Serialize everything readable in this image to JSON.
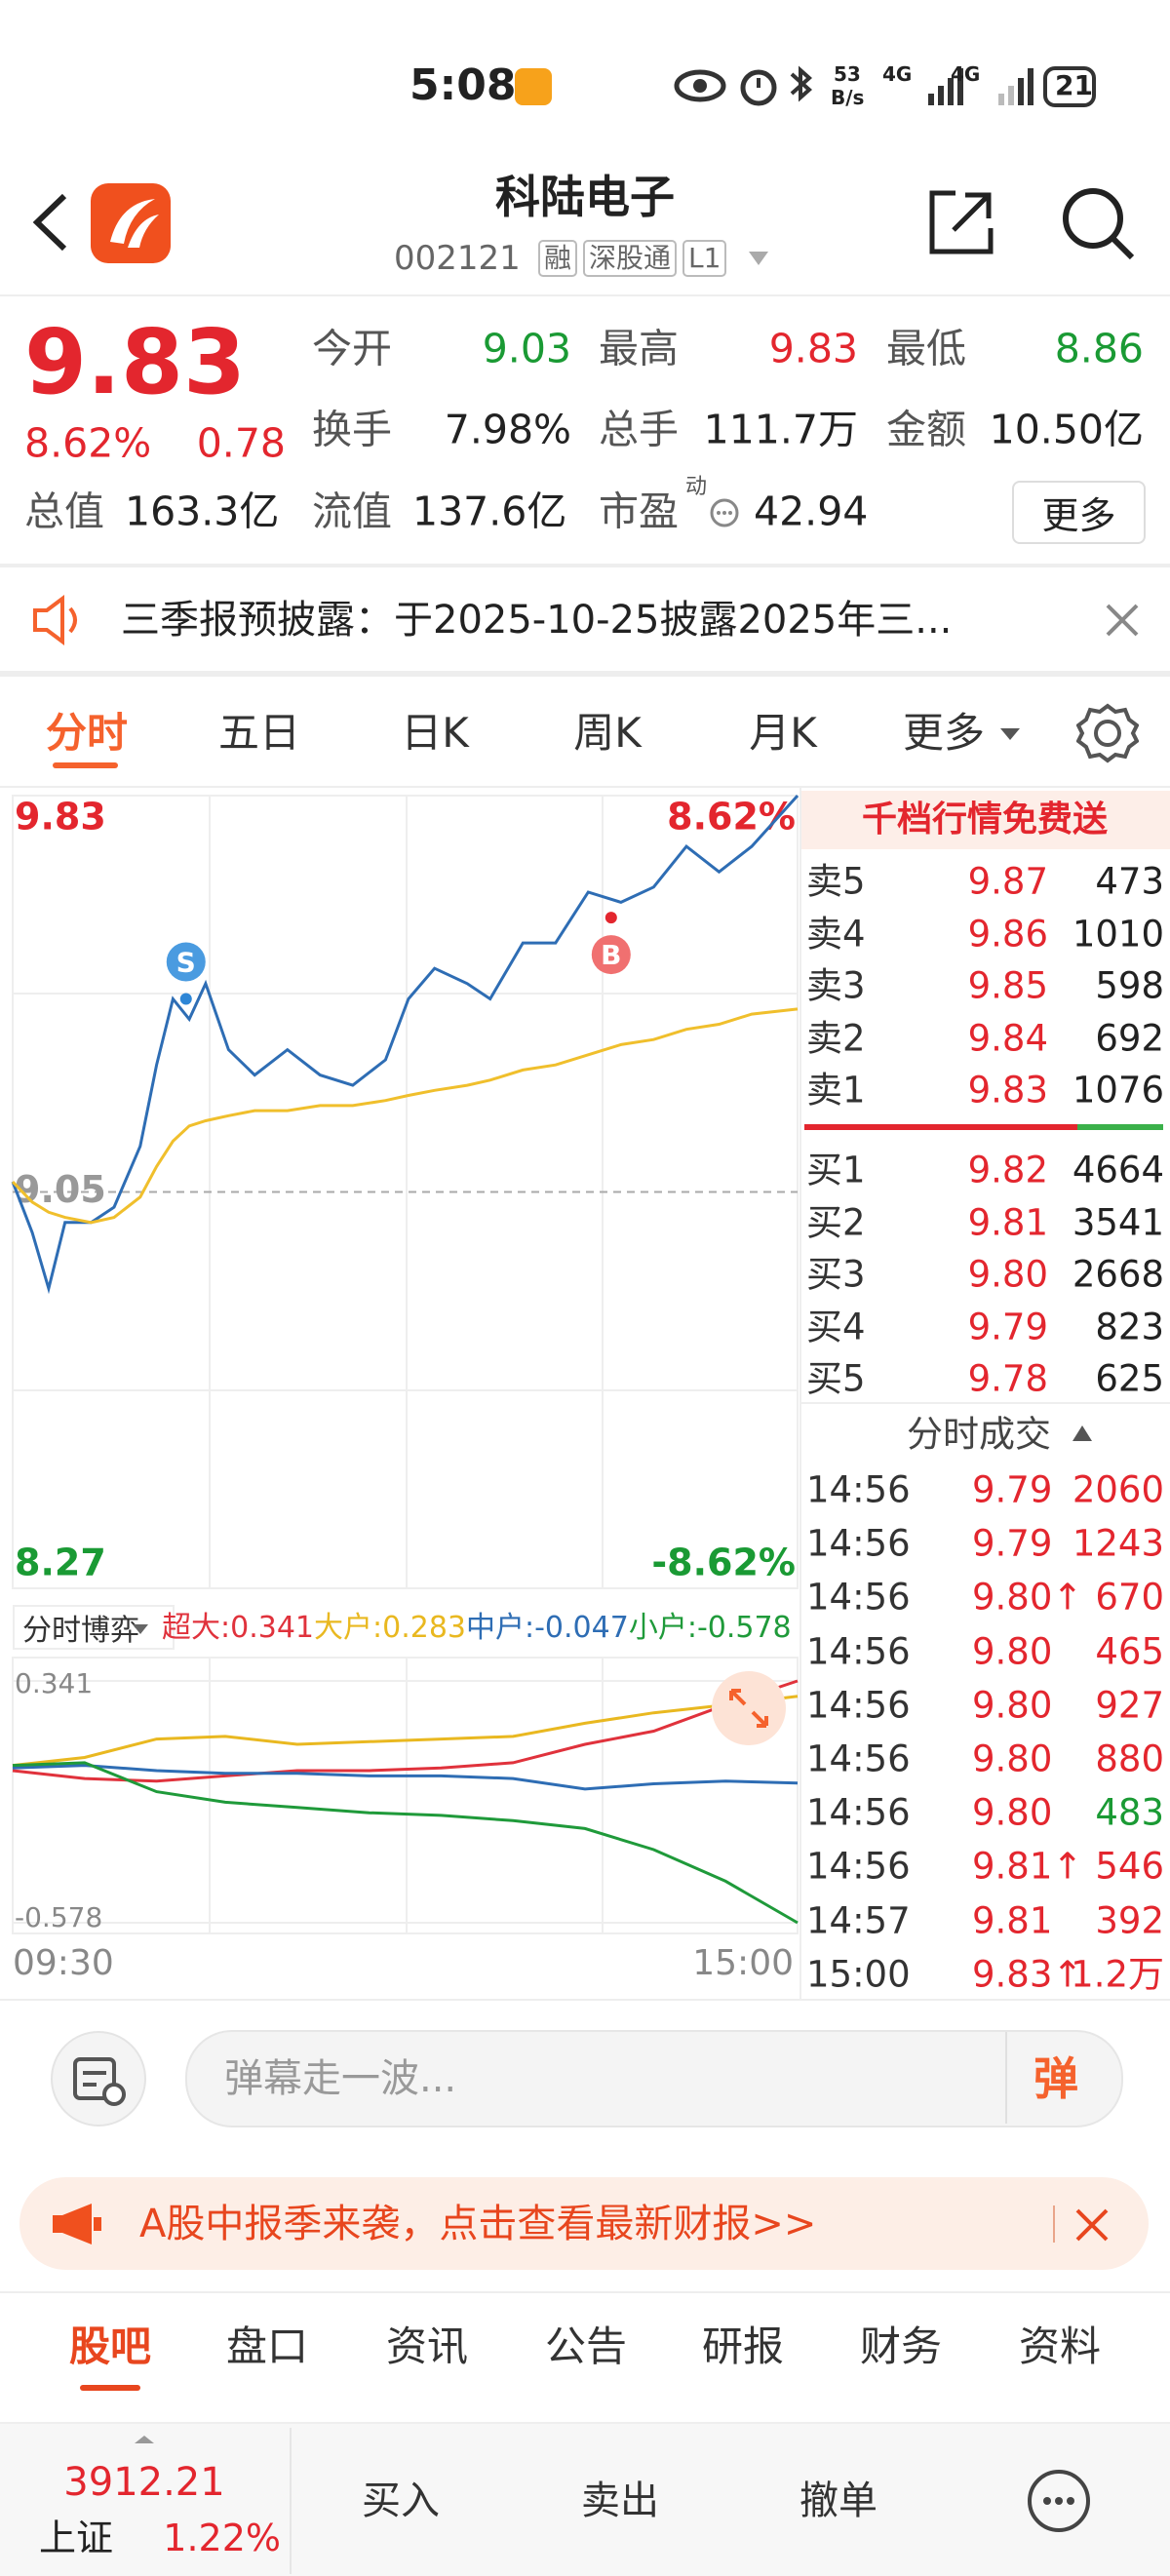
{
  "status_bar": {
    "time": "5:08",
    "speed": "53",
    "speed_unit": "B/s",
    "net1": "4G",
    "net2": "4G",
    "battery": "21"
  },
  "header": {
    "title": "科陆电子",
    "code": "002121",
    "badges": [
      "融",
      "深股通",
      "L1"
    ]
  },
  "quote": {
    "price": "9.83",
    "change_pct": "8.62%",
    "change": "0.78",
    "open": {
      "label": "今开",
      "value": "9.03"
    },
    "high": {
      "label": "最高",
      "value": "9.83"
    },
    "low": {
      "label": "最低",
      "value": "8.86"
    },
    "turnover": {
      "label": "换手",
      "value": "7.98%"
    },
    "volume": {
      "label": "总手",
      "value": "111.7万"
    },
    "amount": {
      "label": "金额",
      "value": "10.50亿"
    },
    "market_cap": {
      "label": "总值",
      "value": "163.3亿"
    },
    "float_cap": {
      "label": "流值",
      "value": "137.6亿"
    },
    "pe": {
      "label": "市盈",
      "tag": "动",
      "value": "42.94"
    },
    "more": "更多"
  },
  "notice": {
    "text": "三季报预披露：于2025-10-25披露2025年三..."
  },
  "tabs": [
    "分时",
    "五日",
    "日K",
    "周K",
    "月K",
    "更多"
  ],
  "chart_data": [
    {
      "type": "line",
      "x": [
        0,
        6,
        11,
        16,
        24,
        31,
        39,
        44,
        49,
        54,
        59,
        66,
        74,
        84,
        94,
        104,
        114,
        121,
        129,
        139,
        146,
        156,
        166,
        176,
        186,
        196,
        206,
        216,
        226,
        240
      ],
      "xlim": [
        0,
        240
      ],
      "xticks": [
        {
          "value": 0,
          "label": "09:30"
        },
        {
          "value": 240,
          "label": "15:00"
        }
      ],
      "ylim": [
        8.27,
        9.83
      ],
      "yticks": [
        9.83,
        9.05,
        8.27
      ],
      "y2lim": [
        -8.62,
        8.62
      ],
      "y2ticks": [
        {
          "value": 8.62,
          "label": "8.62%"
        },
        {
          "value": -8.62,
          "label": "-8.62%"
        }
      ],
      "series": [
        {
          "color": "#2e6db4",
          "values": [
            9.07,
            8.97,
            8.86,
            8.99,
            8.99,
            9.02,
            9.14,
            9.3,
            9.43,
            9.39,
            9.46,
            9.33,
            9.28,
            9.33,
            9.28,
            9.26,
            9.31,
            9.43,
            9.49,
            9.46,
            9.43,
            9.54,
            9.54,
            9.64,
            9.62,
            9.65,
            9.73,
            9.68,
            9.73,
            9.83
          ]
        },
        {
          "color": "#f0bf2c",
          "values": [
            9.07,
            9.03,
            9.01,
            9.0,
            8.99,
            9.0,
            9.04,
            9.1,
            9.15,
            9.18,
            9.19,
            9.2,
            9.21,
            9.21,
            9.22,
            9.22,
            9.23,
            9.24,
            9.25,
            9.26,
            9.27,
            9.29,
            9.3,
            9.32,
            9.34,
            9.35,
            9.37,
            9.38,
            9.4,
            9.41
          ]
        }
      ],
      "annotations": [
        {
          "text": "S",
          "x": 53,
          "y": 9.43
        },
        {
          "text": "B",
          "x": 183,
          "y": 9.59
        }
      ]
    },
    {
      "type": "line",
      "x": [
        0,
        22,
        44,
        65,
        87,
        109,
        131,
        153,
        175,
        196,
        218,
        240
      ],
      "xlim": [
        0,
        240
      ],
      "ylim": [
        -0.578,
        0.341
      ],
      "yticks": [
        0.341,
        -0.578
      ],
      "series": [
        {
          "name": "超大",
          "color": "#e0323c",
          "values": [
            0.0,
            -0.03,
            -0.04,
            -0.02,
            0.0,
            0.0,
            0.01,
            0.03,
            0.1,
            0.15,
            0.25,
            0.341
          ]
        },
        {
          "name": "大户",
          "color": "#e9b820",
          "values": [
            0.02,
            0.05,
            0.12,
            0.13,
            0.1,
            0.11,
            0.12,
            0.13,
            0.18,
            0.22,
            0.25,
            0.283
          ]
        },
        {
          "name": "中户",
          "color": "#2e6db4",
          "values": [
            0.01,
            0.02,
            0.0,
            -0.01,
            -0.01,
            -0.02,
            -0.02,
            -0.03,
            -0.07,
            -0.05,
            -0.04,
            -0.047
          ]
        },
        {
          "name": "小户",
          "color": "#1f9a3a",
          "values": [
            0.02,
            0.03,
            -0.08,
            -0.12,
            -0.14,
            -0.16,
            -0.17,
            -0.19,
            -0.22,
            -0.3,
            -0.42,
            -0.578
          ]
        }
      ]
    }
  ],
  "flow_selector": "分时博弈",
  "order_book": {
    "title": "千档行情免费送",
    "asks": [
      {
        "label": "卖5",
        "price": "9.87",
        "volume": "473"
      },
      {
        "label": "卖4",
        "price": "9.86",
        "volume": "1010"
      },
      {
        "label": "卖3",
        "price": "9.85",
        "volume": "598"
      },
      {
        "label": "卖2",
        "price": "9.84",
        "volume": "692"
      },
      {
        "label": "卖1",
        "price": "9.83",
        "volume": "1076"
      }
    ],
    "bids": [
      {
        "label": "买1",
        "price": "9.82",
        "volume": "4664"
      },
      {
        "label": "买2",
        "price": "9.81",
        "volume": "3541"
      },
      {
        "label": "买3",
        "price": "9.80",
        "volume": "2668"
      },
      {
        "label": "买4",
        "price": "9.79",
        "volume": "823"
      },
      {
        "label": "买5",
        "price": "9.78",
        "volume": "625"
      }
    ]
  },
  "trades": {
    "title": "分时成交",
    "rows": [
      {
        "time": "14:56",
        "price": "9.79",
        "volume": "2060"
      },
      {
        "time": "14:56",
        "price": "9.79",
        "volume": "1243"
      },
      {
        "time": "14:56",
        "price": "9.80↑",
        "volume": "670"
      },
      {
        "time": "14:56",
        "price": "9.80",
        "volume": "465"
      },
      {
        "time": "14:56",
        "price": "9.80",
        "volume": "927"
      },
      {
        "time": "14:56",
        "price": "9.80",
        "volume": "880"
      },
      {
        "time": "14:56",
        "price": "9.80",
        "volume": "483"
      },
      {
        "time": "14:56",
        "price": "9.81↑",
        "volume": "546"
      },
      {
        "time": "14:57",
        "price": "9.81",
        "volume": "392"
      },
      {
        "time": "15:00",
        "price": "9.83↑",
        "volume": "1.2万"
      }
    ]
  },
  "comment_bar": {
    "placeholder": "弹幕走一波...",
    "button": "弹"
  },
  "banner": {
    "text": "A股中报季来袭，点击查看最新财报>>"
  },
  "bottom_tabs": [
    "股吧",
    "盘口",
    "资讯",
    "公告",
    "研报",
    "财务",
    "资料"
  ],
  "footer": {
    "index_value": "3912.21",
    "index_name": "上证",
    "index_change": "1.22%",
    "actions": [
      "买入",
      "卖出",
      "撤单"
    ]
  }
}
